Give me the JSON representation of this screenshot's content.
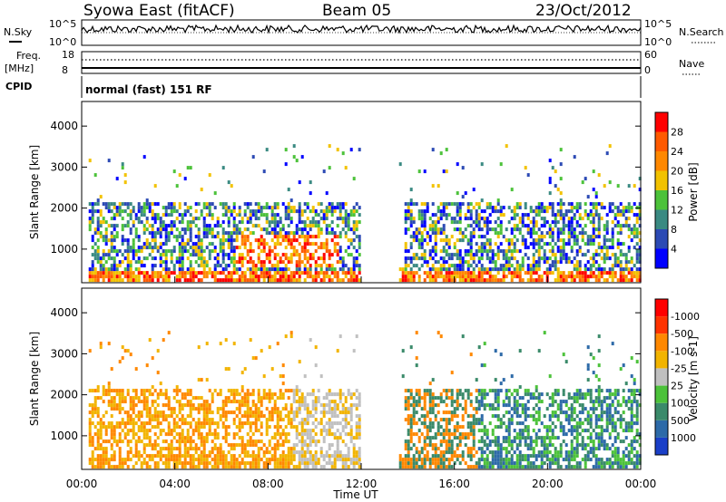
{
  "header": {
    "station": "Syowa East (fitACF)",
    "beam": "Beam 05",
    "date": "23/Oct/2012"
  },
  "top_panels": {
    "nsky_label": "N.Sky",
    "nsearch_label": "N.Search",
    "nsky_ticks": [
      "10^5",
      "10^0"
    ],
    "nsearch_ticks": [
      "10^5",
      "10^0"
    ],
    "freq_label_1": "Freq.",
    "freq_label_2": "[MHz]",
    "freq_ticks": [
      "18",
      "8"
    ],
    "nave_label": "Nave",
    "nave_ticks": [
      "60",
      "0"
    ],
    "cpid_label": "CPID",
    "cpid_text": "normal (fast) 151 RF"
  },
  "chart_data": [
    {
      "type": "heatmap",
      "name": "power-panel",
      "ylabel": "Slant Range [km]",
      "xlim": [
        "00:00",
        "00:00"
      ],
      "ylim": [
        180,
        4600
      ],
      "yticks": [
        1000,
        2000,
        3000,
        4000
      ],
      "colorbar": {
        "label": "Power [dB]",
        "ticks": [
          "4",
          "8",
          "12",
          "16",
          "20",
          "24",
          "28"
        ],
        "colors": [
          "#0000ff",
          "#2c4ab4",
          "#3a8a82",
          "#4cc23a",
          "#f2c200",
          "#ff8800",
          "#ff5a00",
          "#ff0000"
        ]
      },
      "regions": [
        {
          "t_start": 0.5,
          "t_end": 11.8,
          "r_start": 200,
          "r_end": 2100,
          "level": "mixed low-high"
        },
        {
          "t_start": 6.5,
          "t_end": 11.0,
          "r_start": 600,
          "r_end": 1400,
          "level": "high near 08:30"
        },
        {
          "t_start": 13.8,
          "t_end": 24.0,
          "r_start": 200,
          "r_end": 2200,
          "level": "mixed"
        }
      ]
    },
    {
      "type": "heatmap",
      "name": "velocity-panel",
      "ylabel": "Slant Range [km]",
      "xlabel": "Time UT",
      "xticks": [
        "00:00",
        "04:00",
        "08:00",
        "12:00",
        "16:00",
        "20:00",
        "00:00"
      ],
      "ylim": [
        180,
        4600
      ],
      "yticks": [
        1000,
        2000,
        3000,
        4000
      ],
      "colorbar": {
        "label": "Velocity [m s-1]",
        "ticks": [
          "1000",
          "500",
          "100",
          "25",
          "-25",
          "-100",
          "-500",
          "-1000"
        ],
        "colors": [
          "#1a3fc8",
          "#2d6aa8",
          "#3a8a6a",
          "#4cc23a",
          "#c0c0c0",
          "#f2b400",
          "#ff8800",
          "#ff3300",
          "#ff0000"
        ]
      },
      "regions": [
        {
          "t_start": 0.5,
          "t_end": 11.8,
          "r_start": 200,
          "r_end": 1700,
          "level": "negative (orange/yellow)"
        },
        {
          "t_start": 9.0,
          "t_end": 11.8,
          "r_start": 600,
          "r_end": 1500,
          "level": "near zero (grey)"
        },
        {
          "t_start": 15.0,
          "t_end": 24.0,
          "r_start": 300,
          "r_end": 1600,
          "level": "positive (green)"
        }
      ]
    }
  ]
}
